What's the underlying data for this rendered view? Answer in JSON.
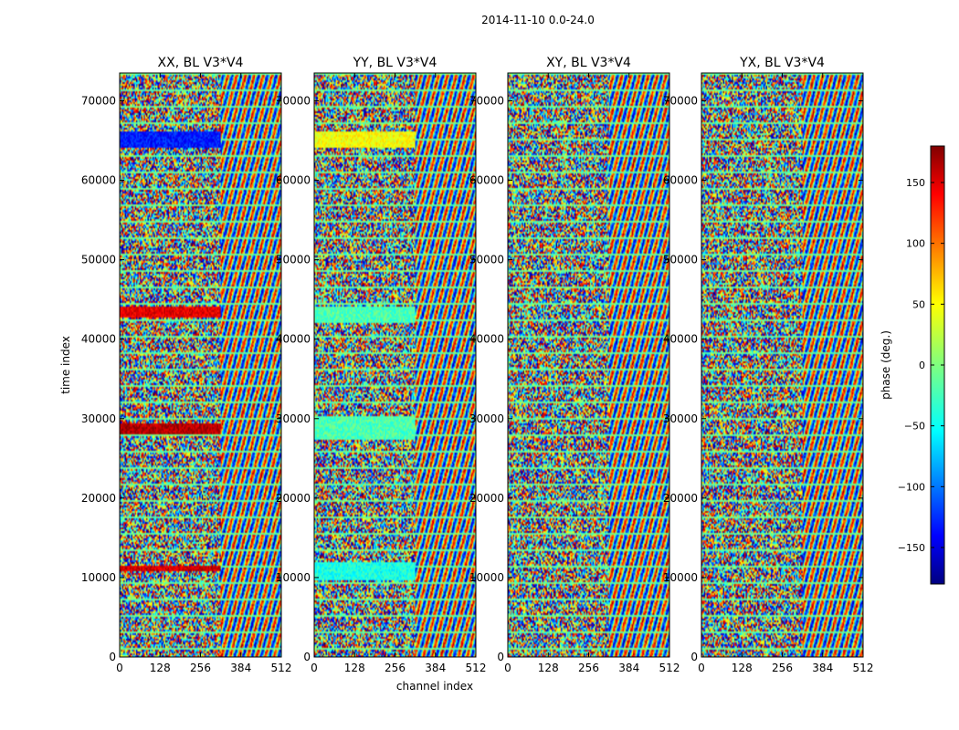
{
  "figure": {
    "suptitle": "2014-11-10 0.0-24.0"
  },
  "chart_data": [
    {
      "type": "heatmap",
      "title": "XX, BL V3*V4",
      "xlabel": "channel index",
      "ylabel": "time index",
      "x_ticks": [
        0,
        128,
        256,
        384,
        512
      ],
      "y_ticks": [
        0,
        10000,
        20000,
        30000,
        40000,
        50000,
        60000,
        70000
      ],
      "xlim": [
        0,
        512
      ],
      "ylim": [
        0,
        73500
      ],
      "value_label": "phase (deg.)",
      "clim": [
        -180,
        180
      ]
    },
    {
      "type": "heatmap",
      "title": "YY, BL V3*V4",
      "x_ticks": [
        0,
        128,
        256,
        384,
        512
      ],
      "y_ticks": [
        0,
        10000,
        20000,
        30000,
        40000,
        50000,
        60000,
        70000
      ],
      "xlim": [
        0,
        512
      ],
      "ylim": [
        0,
        73500
      ],
      "value_label": "phase (deg.)",
      "clim": [
        -180,
        180
      ]
    },
    {
      "type": "heatmap",
      "title": "XY, BL V3*V4",
      "x_ticks": [
        0,
        128,
        256,
        384,
        512
      ],
      "y_ticks": [
        0,
        10000,
        20000,
        30000,
        40000,
        50000,
        60000,
        70000
      ],
      "xlim": [
        0,
        512
      ],
      "ylim": [
        0,
        73500
      ],
      "value_label": "phase (deg.)",
      "clim": [
        -180,
        180
      ]
    },
    {
      "type": "heatmap",
      "title": "YX, BL V3*V4",
      "x_ticks": [
        0,
        128,
        256,
        384,
        512
      ],
      "y_ticks": [
        0,
        10000,
        20000,
        30000,
        40000,
        50000,
        60000,
        70000
      ],
      "xlim": [
        0,
        512
      ],
      "ylim": [
        0,
        73500
      ],
      "value_label": "phase (deg.)",
      "clim": [
        -180,
        180
      ]
    }
  ],
  "colorbar": {
    "label": "phase (deg.)",
    "ticks": [
      -150,
      -100,
      -50,
      0,
      50,
      100,
      150
    ],
    "range": [
      -180,
      180
    ],
    "colormap": "jet"
  }
}
